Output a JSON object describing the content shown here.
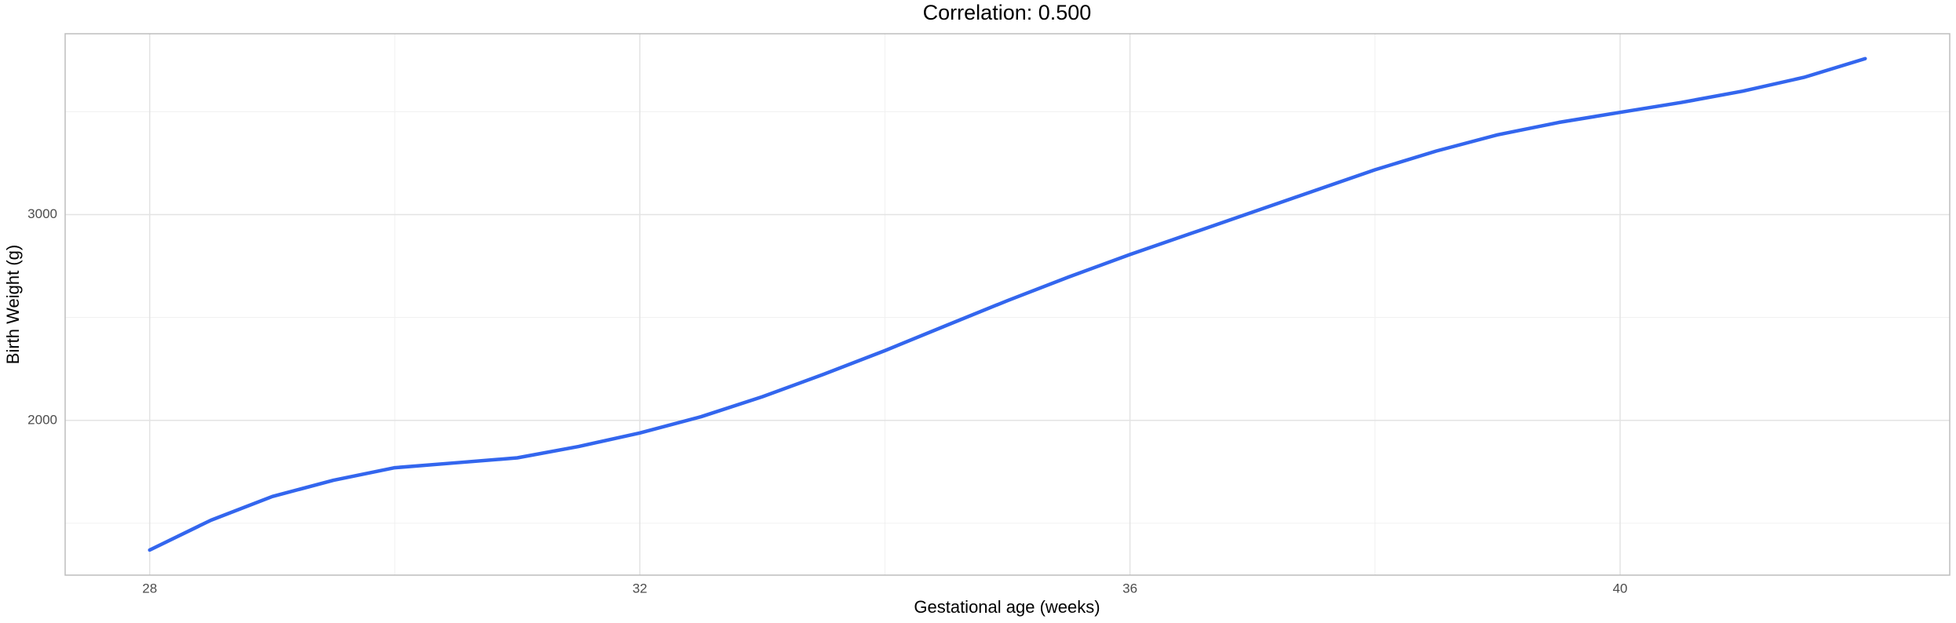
{
  "chart_data": {
    "type": "line",
    "title": "Correlation: 0.500",
    "x_label": "Gestational age (weeks)",
    "y_label": "Birth Weight (g)",
    "x": [
      28,
      28.5,
      29,
      29.5,
      30,
      30.5,
      31,
      31.5,
      32,
      32.5,
      33,
      33.5,
      34,
      34.5,
      35,
      35.5,
      36,
      36.5,
      37,
      37.5,
      38,
      38.5,
      39,
      39.5,
      40,
      40.5,
      41,
      41.5,
      42
    ],
    "values": [
      1370,
      1515,
      1630,
      1709,
      1770,
      1794,
      1818,
      1873,
      1939,
      2018,
      2115,
      2224,
      2339,
      2461,
      2582,
      2697,
      2806,
      2909,
      3012,
      3115,
      3218,
      3309,
      3388,
      3448,
      3497,
      3545,
      3600,
      3667,
      3758
    ],
    "color": "#3366ee",
    "xlim": [
      27.31,
      42.69
    ],
    "ylim": [
      1248,
      3879
    ],
    "xticks": [
      28,
      32,
      36,
      40
    ],
    "yticks": [
      2000,
      3000
    ],
    "minor_xticks": [
      30,
      34,
      38
    ],
    "minor_yticks": [
      1500,
      2500,
      3500
    ],
    "grid": true
  }
}
